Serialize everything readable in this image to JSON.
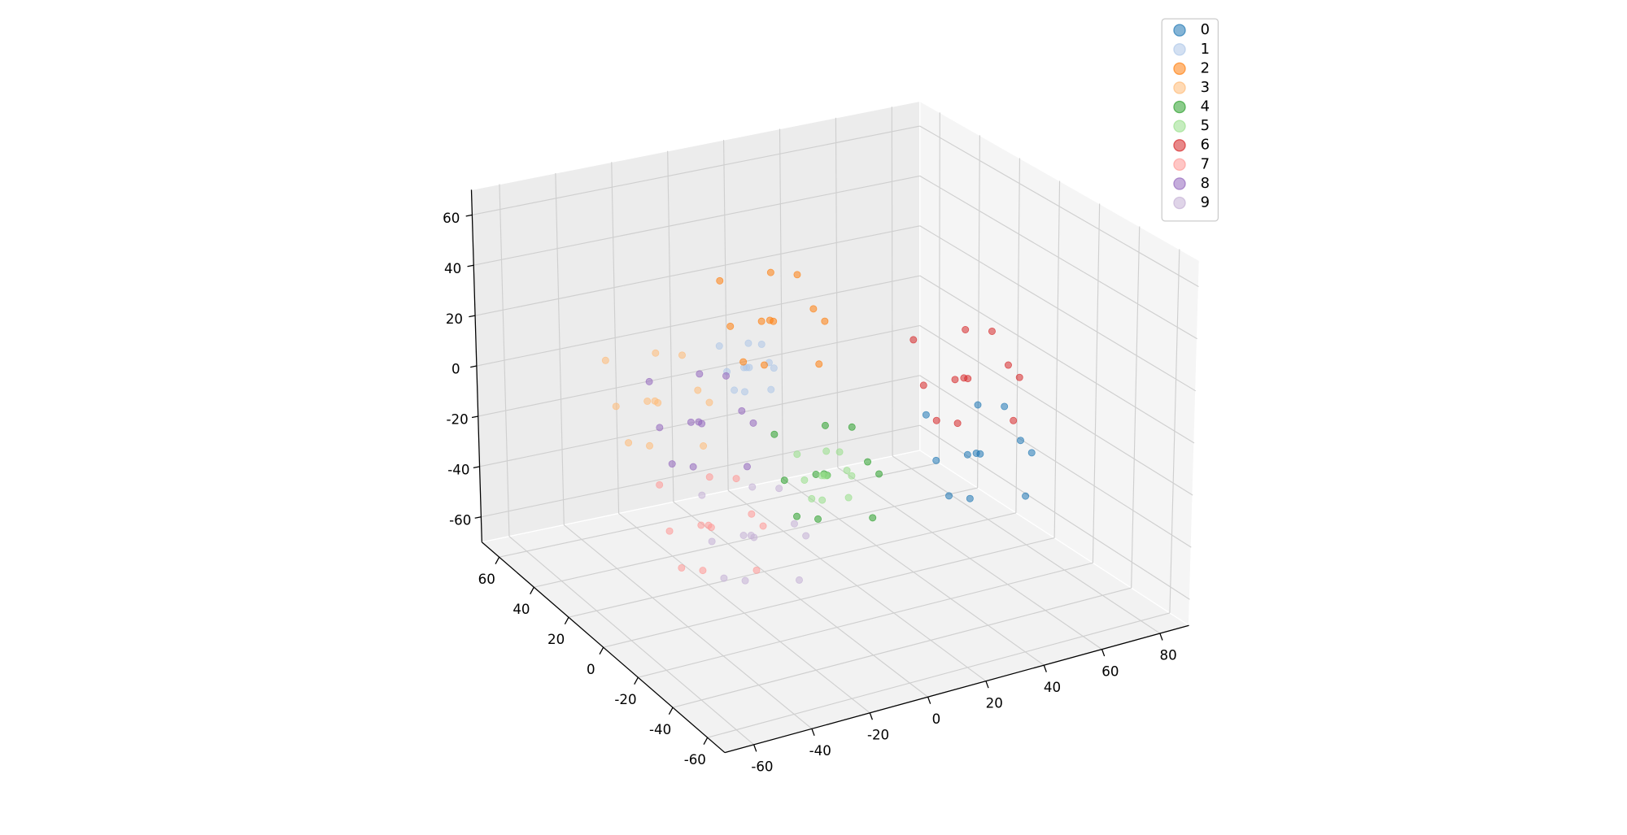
{
  "chart_data": {
    "type": "scatter3d",
    "xlim": [
      -70,
      90
    ],
    "ylim": [
      -70,
      70
    ],
    "zlim": [
      -70,
      70
    ],
    "xticks": [
      -60,
      -40,
      -20,
      0,
      20,
      40,
      60,
      80
    ],
    "yticks": [
      -60,
      -40,
      -20,
      0,
      20,
      40,
      60
    ],
    "zticks": [
      -60,
      -40,
      -20,
      0,
      20,
      40,
      60
    ],
    "grid": true,
    "legend": "upper right",
    "series": [
      {
        "name": "0",
        "color": "#1f77b4",
        "x": [
          43,
          55,
          33,
          48,
          37,
          58,
          29,
          51,
          34,
          46,
          39,
          61
        ],
        "y": [
          -28,
          -33,
          -22,
          -16,
          -39,
          -20,
          -35,
          -42,
          -15,
          -24,
          -31,
          -30
        ],
        "z": [
          -10,
          -6,
          -13,
          -18,
          -3,
          0,
          -19,
          -22,
          1,
          6,
          -25,
          -14
        ]
      },
      {
        "name": "1",
        "color": "#aec7e8",
        "x": [
          -4,
          2,
          -9,
          -1,
          -7,
          4,
          -11,
          0,
          -9,
          -2,
          -6,
          5
        ],
        "y": [
          23,
          20,
          26,
          29,
          17,
          27,
          19,
          16,
          30,
          25,
          21,
          22
        ],
        "z": [
          10,
          12,
          8,
          6,
          14,
          15,
          5,
          4,
          16,
          18,
          2,
          8
        ]
      },
      {
        "name": "2",
        "color": "#ff7f0e",
        "x": [
          1,
          13,
          -9,
          6,
          -5,
          16,
          -13,
          9,
          -8,
          4,
          -3,
          19
        ],
        "y": [
          18,
          13,
          24,
          30,
          7,
          26,
          11,
          4,
          31,
          22,
          15,
          16
        ],
        "z": [
          30,
          34,
          27,
          22,
          37,
          40,
          21,
          18,
          41,
          46,
          15,
          26
        ]
      },
      {
        "name": "3",
        "color": "#ffbb78",
        "x": [
          -32,
          -20,
          -42,
          -27,
          -38,
          -17,
          -46,
          -24,
          -41,
          -29,
          -36,
          -14
        ],
        "y": [
          30,
          25,
          36,
          42,
          19,
          38,
          23,
          16,
          43,
          34,
          27,
          28
        ],
        "z": [
          0,
          4,
          -3,
          -8,
          7,
          10,
          -9,
          -12,
          11,
          16,
          -15,
          -4
        ]
      },
      {
        "name": "4",
        "color": "#2ca02c",
        "x": [
          1,
          13,
          -9,
          6,
          -5,
          16,
          -13,
          9,
          -8,
          4,
          -3,
          19
        ],
        "y": [
          -11,
          -16,
          -5,
          1,
          -22,
          -3,
          -18,
          -25,
          2,
          -7,
          -14,
          -13
        ],
        "z": [
          -15,
          -11,
          -18,
          -23,
          -8,
          -5,
          -24,
          -27,
          -4,
          1,
          -30,
          -19
        ]
      },
      {
        "name": "5",
        "color": "#98df8a",
        "x": [
          5,
          11,
          0,
          8,
          2,
          13,
          -2,
          9,
          0,
          7,
          3,
          14
        ],
        "y": [
          -5,
          -8,
          -2,
          1,
          -11,
          -1,
          -9,
          -12,
          2,
          -3,
          -7,
          -6
        ],
        "z": [
          -20,
          -18,
          -22,
          -24,
          -16,
          -15,
          -25,
          -26,
          -14,
          -12,
          -28,
          -22
        ]
      },
      {
        "name": "6",
        "color": "#d62728",
        "x": [
          39,
          51,
          29,
          44,
          33,
          54,
          25,
          47,
          30,
          42,
          35,
          57
        ],
        "y": [
          -27,
          -32,
          -21,
          -15,
          -38,
          -19,
          -34,
          -41,
          -14,
          -23,
          -30,
          -29
        ],
        "z": [
          20,
          24,
          17,
          12,
          27,
          30,
          11,
          8,
          31,
          36,
          5,
          16
        ]
      },
      {
        "name": "7",
        "color": "#ff9896",
        "x": [
          -30,
          -18,
          -40,
          -25,
          -36,
          -15,
          -44,
          -22,
          -39,
          -27,
          -34,
          -12
        ],
        "y": [
          4,
          -1,
          10,
          16,
          -7,
          12,
          -3,
          -10,
          17,
          8,
          1,
          2
        ],
        "z": [
          -35,
          -31,
          -38,
          -43,
          -28,
          -25,
          -44,
          -47,
          -24,
          -19,
          -50,
          -39
        ]
      },
      {
        "name": "8",
        "color": "#9467bd",
        "x": [
          -23,
          -11,
          -33,
          -18,
          -29,
          -8,
          -37,
          -15,
          -32,
          -20,
          -27,
          -5
        ],
        "y": [
          20,
          15,
          26,
          32,
          9,
          28,
          13,
          6,
          33,
          24,
          17,
          18
        ],
        "z": [
          -5,
          -1,
          -8,
          -13,
          2,
          5,
          -14,
          -17,
          6,
          11,
          -20,
          -9
        ]
      },
      {
        "name": "9",
        "color": "#c5b0d5",
        "x": [
          -22,
          -10,
          -32,
          -17,
          -28,
          -7,
          -36,
          -14,
          -31,
          -19,
          -26,
          -4
        ],
        "y": [
          -7,
          -12,
          -1,
          5,
          -18,
          1,
          -14,
          -21,
          6,
          -3,
          -10,
          -9
        ],
        "z": [
          -35,
          -31,
          -38,
          -43,
          -28,
          -25,
          -44,
          -47,
          -24,
          -19,
          -50,
          -39
        ]
      }
    ]
  }
}
